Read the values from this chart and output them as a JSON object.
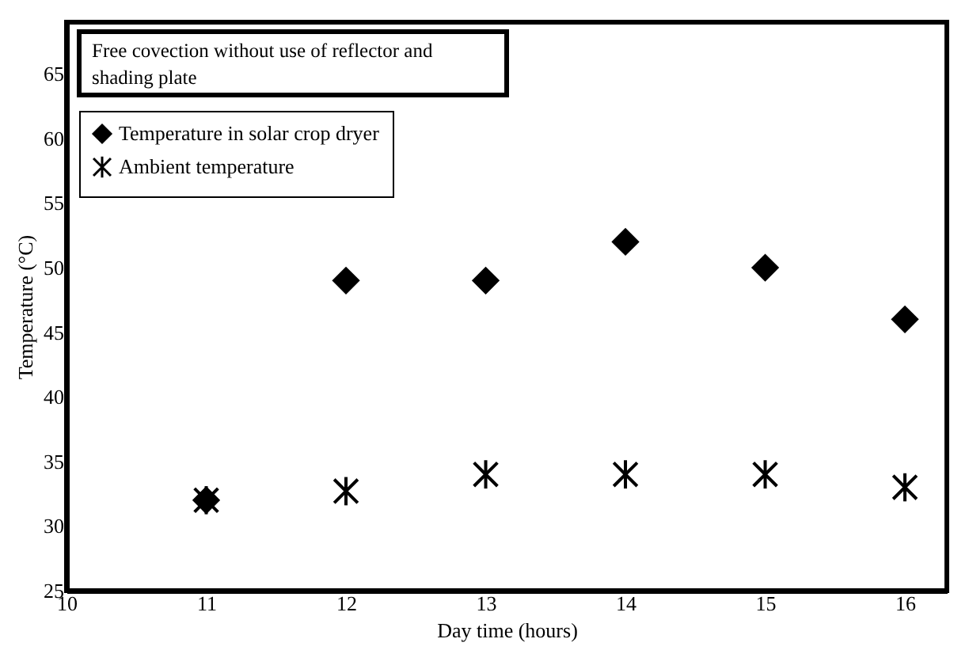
{
  "chart_data": {
    "type": "scatter",
    "annotations": [
      "Free covection without use of reflector and shading plate"
    ],
    "xlabel": "Day time (hours)",
    "ylabel": "Temperature (°C)",
    "x": [
      11,
      12,
      13,
      14,
      15,
      16
    ],
    "series": [
      {
        "name": "Temperature in solar crop dryer",
        "color": "#000000",
        "marker": "diamond",
        "values": [
          32,
          49,
          49,
          52,
          50,
          46
        ]
      },
      {
        "name": "Ambient temperature",
        "color": "#000000",
        "marker": "cross",
        "values": [
          32,
          32.7,
          34,
          34,
          34,
          33
        ]
      }
    ],
    "xlim": [
      10,
      16.3
    ],
    "xticks": [
      10,
      11,
      12,
      13,
      14,
      15,
      16
    ],
    "ylim": [
      25,
      69
    ],
    "yticks": [
      25,
      30,
      35,
      40,
      45,
      50,
      55,
      60,
      65
    ],
    "grid": false,
    "legend": "top left"
  }
}
